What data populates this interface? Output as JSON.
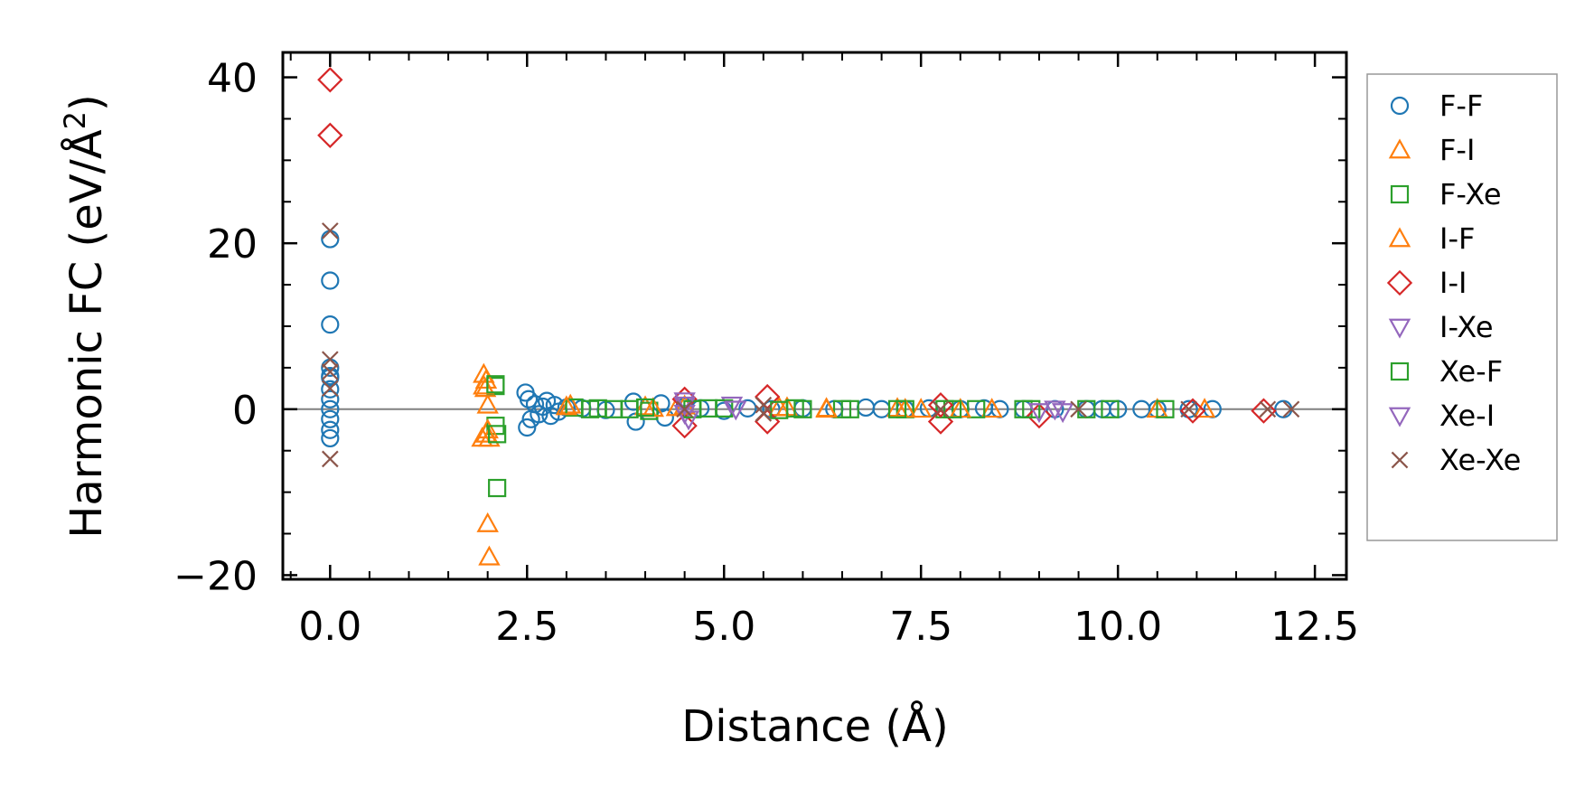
{
  "chart_data": {
    "type": "scatter",
    "xlabel": "Distance (Å)",
    "ylabel_main": "Harmonic FC (eV/Å",
    "ylabel_sup": "2",
    "ylabel_end": ")",
    "xlim": [
      -0.6,
      12.9
    ],
    "ylim": [
      -20.5,
      43
    ],
    "xticks": [
      0.0,
      2.5,
      5.0,
      7.5,
      10.0,
      12.5
    ],
    "xtick_labels": [
      "0.0",
      "2.5",
      "5.0",
      "7.5",
      "10.0",
      "12.5"
    ],
    "yticks": [
      -20,
      0,
      20,
      40
    ],
    "ytick_labels": [
      "−20",
      "0",
      "20",
      "40"
    ],
    "zero_line": true,
    "grid": false,
    "legend_position": "outside-right",
    "series": [
      {
        "name": "F-F",
        "marker": "circle",
        "color": "#1f77b4",
        "x": [
          0,
          0,
          0,
          0,
          0,
          0,
          0,
          0,
          0,
          0,
          0,
          0,
          2.48,
          2.5,
          2.52,
          2.55,
          2.6,
          2.65,
          2.7,
          2.75,
          2.8,
          2.85,
          2.9,
          3.0,
          3.2,
          3.5,
          3.85,
          3.88,
          4.2,
          4.25,
          4.5,
          4.7,
          5.0,
          5.3,
          5.6,
          6.0,
          6.4,
          6.8,
          7.0,
          7.3,
          7.6,
          8.0,
          8.3,
          8.5,
          8.8,
          9.2,
          9.6,
          9.8,
          10.0,
          10.3,
          10.5,
          10.9,
          11.2,
          12.1
        ],
        "y": [
          20.5,
          15.5,
          10.2,
          5.0,
          3.8,
          2.4,
          1.2,
          0,
          -1.2,
          -2.5,
          -3.5,
          4.0,
          2.0,
          -2.2,
          1.2,
          -1.2,
          0.6,
          -0.6,
          0.3,
          1.0,
          -0.8,
          0.5,
          -0.3,
          0.2,
          0.1,
          -0.1,
          0.9,
          -1.5,
          0.7,
          -1.0,
          0.3,
          0.1,
          -0.2,
          0.1,
          0,
          0.1,
          0,
          0.2,
          0,
          0,
          0.1,
          0,
          0.1,
          0,
          0,
          0,
          0,
          0,
          0,
          0,
          0,
          0,
          0,
          0
        ]
      },
      {
        "name": "F-I",
        "marker": "triangle-up",
        "color": "#ff7f0e",
        "x": [
          1.95,
          1.97,
          1.98,
          2.0,
          2.0,
          2.02,
          3.05,
          4.0,
          4.4,
          5.8,
          6.3,
          7.2,
          7.5,
          8.4,
          10.5,
          11.1
        ],
        "y": [
          4.2,
          2.5,
          -3.0,
          -13.8,
          0.5,
          -17.8,
          0.5,
          0.3,
          0.2,
          0.2,
          0.1,
          0.1,
          0,
          0,
          0,
          0
        ]
      },
      {
        "name": "F-Xe",
        "marker": "square",
        "color": "#2ca02c",
        "x": [
          2.1,
          2.1,
          2.12,
          3.1,
          3.3,
          3.6,
          4.05,
          4.8,
          5.9,
          6.5,
          7.3,
          7.8,
          8.2,
          8.8,
          9.6,
          10.6
        ],
        "y": [
          2.8,
          -2.0,
          -9.5,
          0.2,
          0,
          0,
          -0.2,
          0.1,
          0.1,
          0,
          0,
          0,
          0,
          0,
          0,
          0
        ]
      },
      {
        "name": "I-F",
        "marker": "triangle-up",
        "color": "#ff7f0e",
        "x": [
          1.93,
          1.95,
          1.98,
          2.0,
          2.02,
          3.0,
          4.1,
          4.5,
          5.7,
          6.3,
          7.3,
          8.0
        ],
        "y": [
          -3.5,
          2.8,
          3.5,
          -2.5,
          -3.5,
          0.3,
          0.1,
          0.4,
          0.2,
          0,
          0,
          0
        ]
      },
      {
        "name": "I-I",
        "marker": "diamond",
        "color": "#d62728",
        "x": [
          0,
          0,
          4.5,
          4.5,
          5.55,
          5.55,
          7.75,
          7.75,
          9.0,
          10.95,
          11.85
        ],
        "y": [
          39.7,
          33.0,
          1.2,
          -2.0,
          1.5,
          -1.5,
          0.5,
          -1.5,
          -0.8,
          -0.2,
          -0.2
        ]
      },
      {
        "name": "I-Xe",
        "marker": "triangle-down",
        "color": "#9467bd",
        "x": [
          4.5,
          4.5,
          5.1,
          9.2
        ],
        "y": [
          1.0,
          -0.5,
          0.5,
          0
        ]
      },
      {
        "name": "Xe-F",
        "marker": "square",
        "color": "#2ca02c",
        "x": [
          2.1,
          2.12,
          3.4,
          3.8,
          4.0,
          4.6,
          5.0,
          5.7,
          6.0,
          6.6,
          7.2,
          7.9,
          8.9,
          9.9
        ],
        "y": [
          3.0,
          -3.0,
          0.1,
          0,
          0.2,
          0,
          0.1,
          -0.1,
          0,
          0,
          0,
          0,
          0,
          0
        ]
      },
      {
        "name": "Xe-I",
        "marker": "triangle-down",
        "color": "#9467bd",
        "x": [
          4.5,
          4.55,
          5.15,
          9.0,
          9.3
        ],
        "y": [
          0.5,
          -1.2,
          0,
          -0.3,
          -0.3
        ]
      },
      {
        "name": "Xe-Xe",
        "marker": "x",
        "color": "#8c564b",
        "x": [
          0,
          0,
          0,
          0,
          0,
          4.5,
          5.5,
          5.5,
          7.75,
          9.5,
          10.9,
          11.9,
          12.2
        ],
        "y": [
          21.5,
          6.0,
          4.5,
          2.5,
          -6.0,
          0,
          0.5,
          -0.5,
          0,
          0,
          0,
          0,
          0
        ]
      }
    ]
  }
}
